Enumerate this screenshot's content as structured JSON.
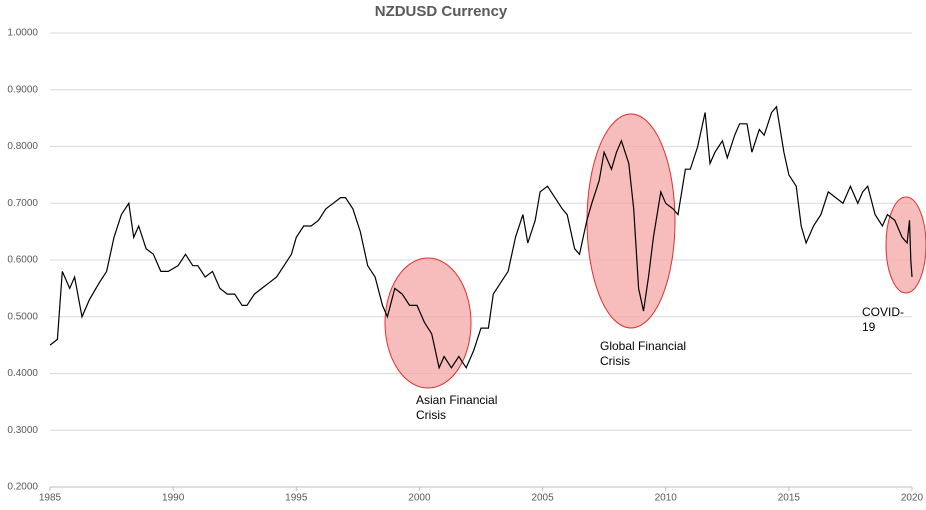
{
  "chart_data": {
    "type": "line",
    "title": "NZDUSD Currency",
    "x": [
      1985.0,
      1985.3,
      1985.5,
      1985.8,
      1986.0,
      1986.3,
      1986.6,
      1987.0,
      1987.3,
      1987.6,
      1987.9,
      1988.2,
      1988.4,
      1988.6,
      1988.9,
      1989.2,
      1989.5,
      1989.8,
      1990.2,
      1990.5,
      1990.8,
      1991.0,
      1991.3,
      1991.6,
      1991.9,
      1992.2,
      1992.5,
      1992.8,
      1993.0,
      1993.3,
      1993.6,
      1993.9,
      1994.2,
      1994.5,
      1994.8,
      1995.0,
      1995.3,
      1995.6,
      1995.9,
      1996.2,
      1996.5,
      1996.8,
      1997.0,
      1997.3,
      1997.6,
      1997.9,
      1998.2,
      1998.5,
      1998.7,
      1999.0,
      1999.3,
      1999.6,
      1999.9,
      2000.2,
      2000.5,
      2000.8,
      2001.0,
      2001.3,
      2001.6,
      2001.9,
      2002.2,
      2002.5,
      2002.8,
      2003.0,
      2003.3,
      2003.6,
      2003.9,
      2004.2,
      2004.4,
      2004.7,
      2004.9,
      2005.2,
      2005.5,
      2005.8,
      2006.0,
      2006.3,
      2006.5,
      2006.8,
      2007.0,
      2007.3,
      2007.5,
      2007.8,
      2008.0,
      2008.2,
      2008.5,
      2008.7,
      2008.9,
      2009.1,
      2009.3,
      2009.5,
      2009.8,
      2010.0,
      2010.3,
      2010.5,
      2010.8,
      2011.0,
      2011.3,
      2011.6,
      2011.8,
      2012.0,
      2012.3,
      2012.5,
      2012.8,
      2013.0,
      2013.3,
      2013.5,
      2013.8,
      2014.0,
      2014.3,
      2014.5,
      2014.8,
      2015.0,
      2015.3,
      2015.5,
      2015.7,
      2016.0,
      2016.3,
      2016.6,
      2016.9,
      2017.2,
      2017.5,
      2017.8,
      2018.0,
      2018.2,
      2018.5,
      2018.8,
      2019.0,
      2019.3,
      2019.6,
      2019.8,
      2019.9,
      2019.95,
      2020.0
    ],
    "values": [
      0.45,
      0.46,
      0.58,
      0.55,
      0.57,
      0.5,
      0.53,
      0.56,
      0.58,
      0.64,
      0.68,
      0.7,
      0.64,
      0.66,
      0.62,
      0.61,
      0.58,
      0.58,
      0.59,
      0.61,
      0.59,
      0.59,
      0.57,
      0.58,
      0.55,
      0.54,
      0.54,
      0.52,
      0.52,
      0.54,
      0.55,
      0.56,
      0.57,
      0.59,
      0.61,
      0.64,
      0.66,
      0.66,
      0.67,
      0.69,
      0.7,
      0.71,
      0.71,
      0.69,
      0.65,
      0.59,
      0.57,
      0.52,
      0.5,
      0.55,
      0.54,
      0.52,
      0.52,
      0.49,
      0.47,
      0.41,
      0.43,
      0.41,
      0.43,
      0.41,
      0.44,
      0.48,
      0.48,
      0.54,
      0.56,
      0.58,
      0.64,
      0.68,
      0.63,
      0.67,
      0.72,
      0.73,
      0.71,
      0.69,
      0.68,
      0.62,
      0.61,
      0.67,
      0.7,
      0.74,
      0.79,
      0.76,
      0.79,
      0.81,
      0.77,
      0.69,
      0.55,
      0.51,
      0.57,
      0.64,
      0.72,
      0.7,
      0.69,
      0.68,
      0.76,
      0.76,
      0.8,
      0.86,
      0.77,
      0.79,
      0.81,
      0.78,
      0.82,
      0.84,
      0.84,
      0.79,
      0.83,
      0.82,
      0.86,
      0.87,
      0.79,
      0.75,
      0.73,
      0.66,
      0.63,
      0.66,
      0.68,
      0.72,
      0.71,
      0.7,
      0.73,
      0.7,
      0.72,
      0.73,
      0.68,
      0.66,
      0.68,
      0.67,
      0.64,
      0.63,
      0.67,
      0.6,
      0.57
    ],
    "color": "#000000",
    "xlim": [
      1985,
      2020
    ],
    "xticks": [
      1985,
      1990,
      1995,
      2000,
      2005,
      2010,
      2015,
      2020
    ],
    "ylim": [
      0.2,
      1.0
    ],
    "yticks": [
      {
        "value": 0.2,
        "label": "0.2000"
      },
      {
        "value": 0.3,
        "label": "0.3000"
      },
      {
        "value": 0.4,
        "label": "0.4000"
      },
      {
        "value": 0.5,
        "label": "0.5000"
      },
      {
        "value": 0.6,
        "label": "0.6000"
      },
      {
        "value": 0.7,
        "label": "0.7000"
      },
      {
        "value": 0.8,
        "label": "0.8000"
      },
      {
        "value": 0.9,
        "label": "0.9000"
      },
      {
        "value": 1.0,
        "label": "1.0000"
      }
    ],
    "grid": true,
    "annotations": [
      {
        "text": "Asian Financial Crisis"
      },
      {
        "text": "Global Financial Crisis"
      },
      {
        "text": "COVID-19"
      }
    ]
  }
}
